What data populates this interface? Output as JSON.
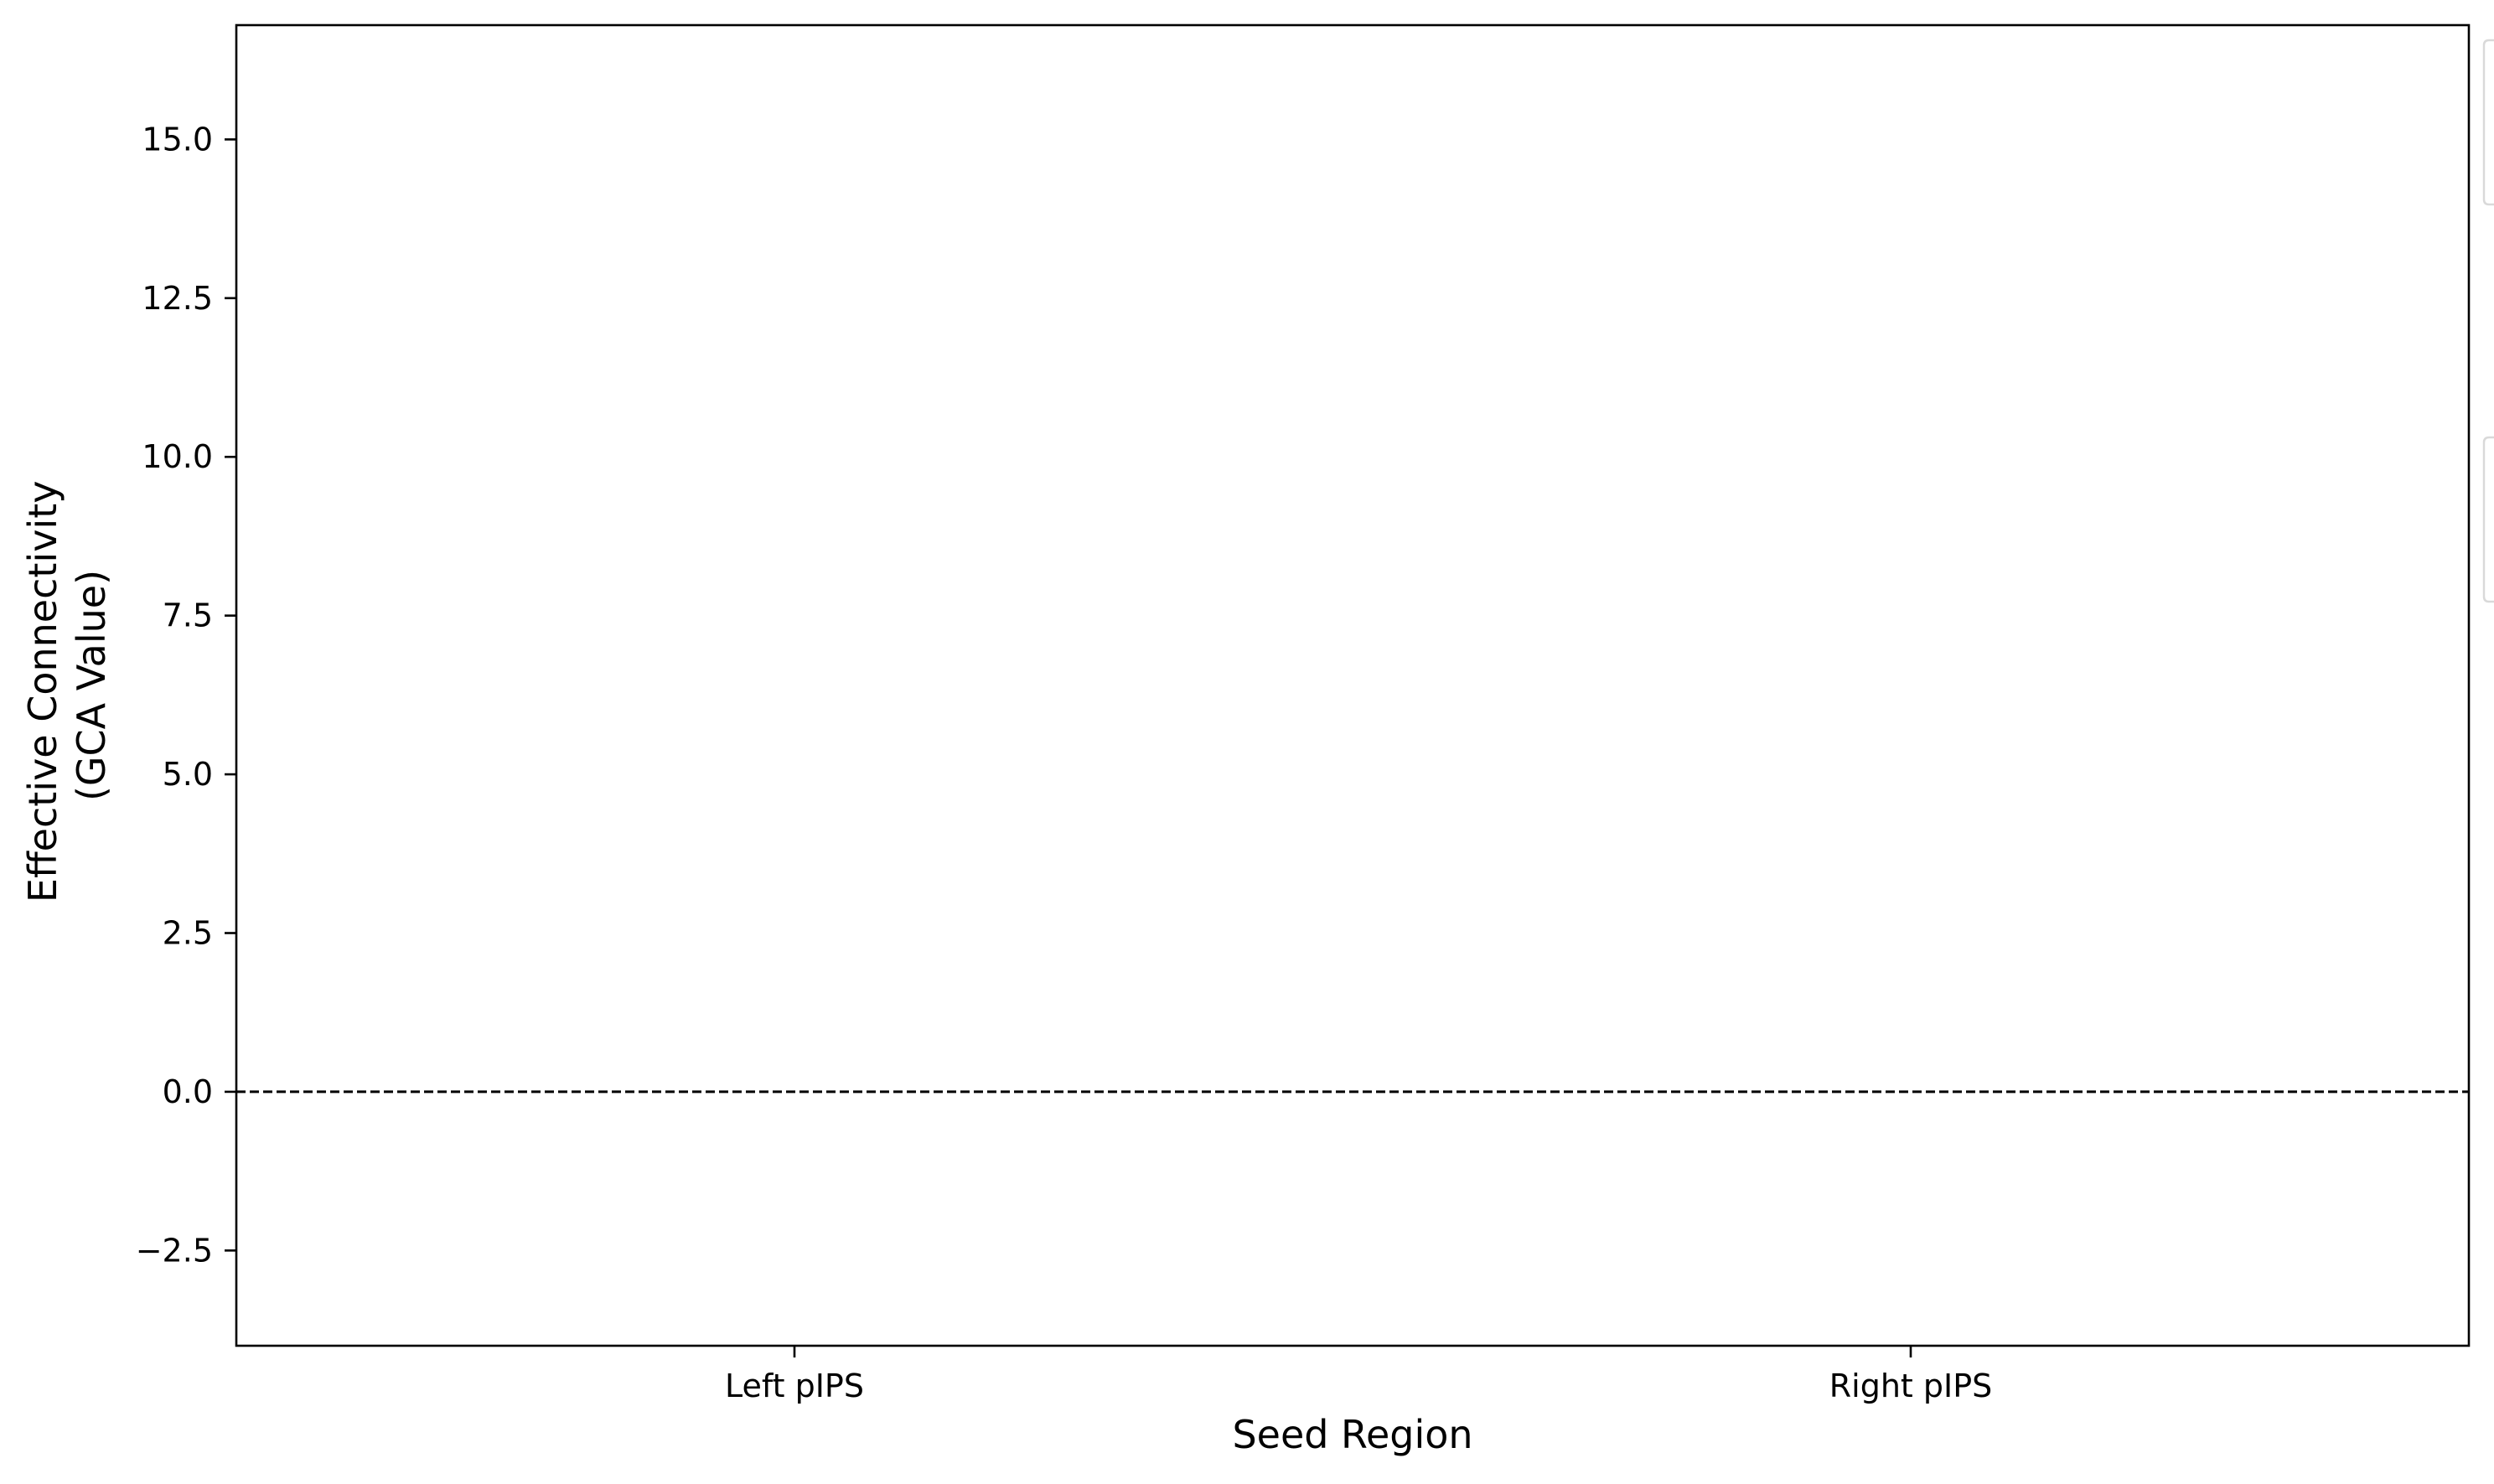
{
  "chart_data": {
    "type": "bar",
    "xlabel": "Seed Region",
    "ylabel_lines": [
      "Effective Connectivity",
      "(GCA Value)"
    ],
    "categories": [
      "Left pIPS",
      "Right pIPS"
    ],
    "series": [],
    "xlim": [
      -0.5,
      1.5
    ],
    "ylim": [
      -4.0,
      16.8
    ],
    "y_ticks": [
      -2.5,
      0.0,
      2.5,
      5.0,
      7.5,
      10.0,
      12.5,
      15.0
    ],
    "y_tick_labels": [
      "−2.5",
      "0.0",
      "2.5",
      "5.0",
      "7.5",
      "10.0",
      "12.5",
      "15.0"
    ],
    "reference_line": {
      "y": 0,
      "style": "dashed",
      "color": "#000000"
    },
    "grid": false,
    "legend": "outside-right (cropped, entries not visible)"
  }
}
